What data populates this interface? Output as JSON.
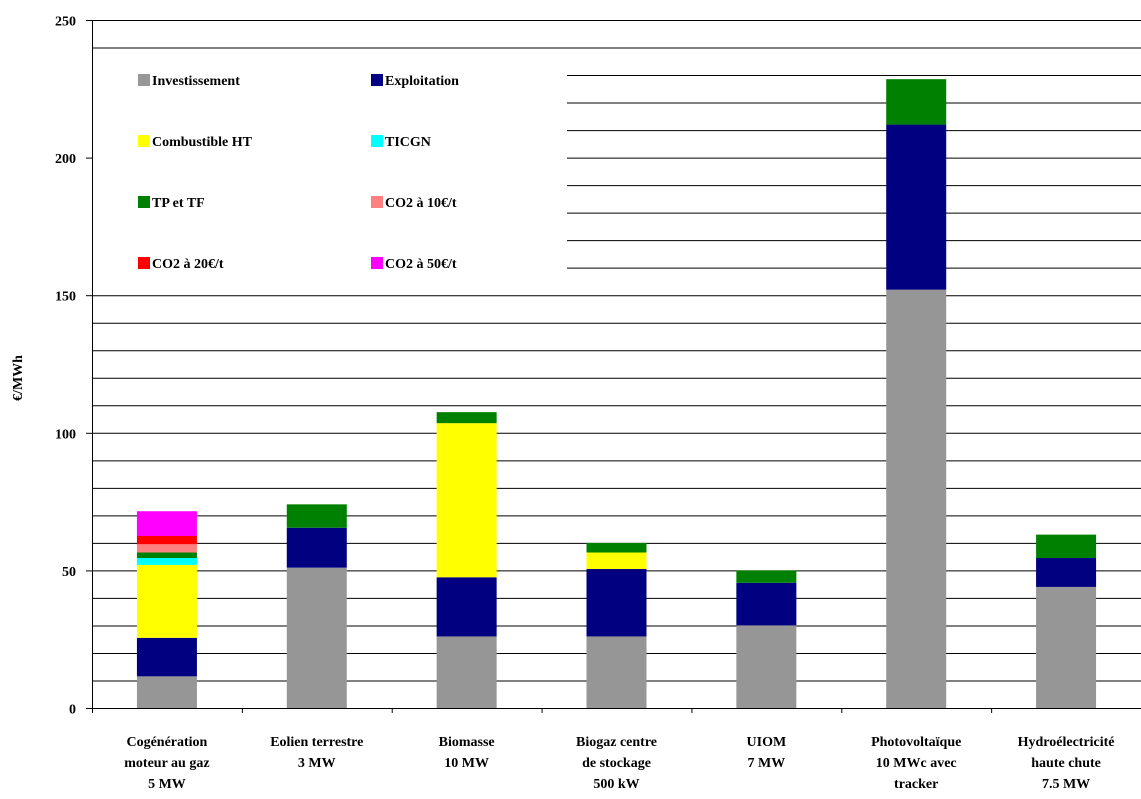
{
  "chart_data": {
    "type": "bar",
    "stacked": true,
    "title": "",
    "ylabel": "€/MWh",
    "xlabel": "",
    "ylim": [
      0,
      250
    ],
    "yticks": [
      "0",
      "50",
      "100",
      "150",
      "200",
      "250"
    ],
    "grid": true,
    "legend_position": "top-left, inside plot",
    "categories": [
      [
        "Cogénération",
        "moteur au gaz",
        "5 MW"
      ],
      [
        "Eolien terrestre",
        "3 MW"
      ],
      [
        "Biomasse",
        "10 MW"
      ],
      [
        "Biogaz centre",
        "de stockage",
        "500 kW"
      ],
      [
        "UIOM",
        "7 MW"
      ],
      [
        "Photovoltaïque",
        "10 MWc avec",
        "tracker"
      ],
      [
        "Hydroélectricité",
        "haute chute",
        "7.5 MW"
      ]
    ],
    "series": [
      {
        "name": "Investissement",
        "color": "#969696",
        "values": [
          11.5,
          51,
          26,
          26,
          30,
          152,
          44
        ]
      },
      {
        "name": "Exploitation",
        "color": "#000080",
        "values": [
          14,
          14.5,
          21.5,
          24.5,
          15.5,
          60,
          10.5
        ]
      },
      {
        "name": "Combustible HT",
        "color": "#ffff00",
        "values": [
          26.5,
          0,
          56,
          6,
          0,
          0,
          0
        ]
      },
      {
        "name": "TICGN",
        "color": "#00ffff",
        "values": [
          2.5,
          0,
          0,
          0,
          0,
          0,
          0
        ]
      },
      {
        "name": "TP et TF",
        "color": "#008000",
        "values": [
          2,
          8.5,
          4,
          3.5,
          4.5,
          16.5,
          8.5
        ]
      },
      {
        "name": "CO2 à 10€/t",
        "color": "#ff8080",
        "values": [
          3,
          0,
          0,
          0,
          0,
          0,
          0
        ]
      },
      {
        "name": "CO2 à 20€/t",
        "color": "#ff0000",
        "values": [
          3,
          0,
          0,
          0,
          0,
          0,
          0
        ]
      },
      {
        "name": "CO2 à 50€/t",
        "color": "#ff00ff",
        "values": [
          9,
          0,
          0,
          0,
          0,
          0,
          0
        ]
      }
    ]
  }
}
